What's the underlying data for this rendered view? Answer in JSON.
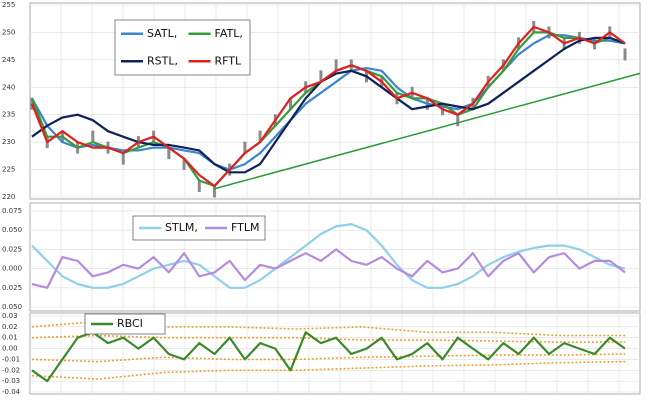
{
  "chart_data": [
    {
      "type": "line",
      "ylim": [
        220,
        255
      ],
      "yticks": [
        220,
        225,
        230,
        235,
        240,
        245,
        250,
        255
      ],
      "xlim": [
        0,
        39
      ],
      "grid": true,
      "price": {
        "color": "#8a8a8a",
        "values": [
          237,
          230,
          231,
          229,
          231,
          229,
          227,
          230,
          231,
          228,
          226,
          222,
          221,
          225,
          229,
          231,
          234,
          237,
          240,
          242,
          244,
          244,
          242,
          241,
          238,
          239,
          237,
          236,
          234,
          237,
          241,
          244,
          248,
          251,
          250,
          248,
          249,
          248,
          250,
          246
        ]
      },
      "series": [
        {
          "name": "SATL,",
          "color": "#3a86d0",
          "values": [
            238,
            233,
            230,
            229,
            229.5,
            229,
            228.5,
            228.5,
            229,
            229,
            228.5,
            228,
            226,
            225,
            226,
            228,
            231,
            234,
            237,
            239,
            241,
            243,
            243.5,
            243,
            240,
            238,
            237,
            236.5,
            236,
            237,
            240,
            243,
            246,
            248,
            249.5,
            249.5,
            249,
            248.5,
            248.5,
            248
          ]
        },
        {
          "name": "FATL,",
          "color": "#3a9a3a",
          "values": [
            238,
            231,
            231,
            229,
            230,
            229,
            228,
            229,
            230,
            229,
            227,
            223,
            222,
            225,
            228,
            230,
            233,
            236,
            239,
            241,
            243,
            244,
            243,
            242,
            239,
            238,
            238,
            237,
            235,
            236,
            240,
            243,
            247,
            250,
            250,
            249,
            249,
            248,
            249,
            248
          ]
        },
        {
          "name": "RSTL,",
          "color": "#10205a",
          "values": [
            231,
            233,
            234.5,
            235,
            234,
            232,
            231,
            230,
            229.5,
            229.5,
            229,
            228.5,
            226,
            224.5,
            224.5,
            226,
            230,
            234,
            238,
            241,
            242.5,
            243,
            242,
            240,
            238,
            236,
            236.5,
            237,
            236.5,
            236,
            237,
            239,
            241,
            243,
            245,
            247,
            248.5,
            249,
            249,
            248
          ]
        },
        {
          "name": "RFTL",
          "color": "#e02020",
          "values": [
            237,
            230,
            232,
            230,
            229,
            229,
            228,
            230,
            231,
            229,
            227,
            224,
            222,
            225,
            228,
            230,
            234,
            238,
            240,
            241,
            243,
            244,
            243,
            241,
            238,
            239,
            238,
            236,
            235,
            237,
            241,
            244,
            248,
            251,
            250,
            248,
            249,
            248,
            250,
            248
          ]
        }
      ],
      "trendline": {
        "color": "#2a9a3a",
        "x": [
          12,
          39
        ],
        "values": [
          221.5,
          241.8
        ]
      }
    },
    {
      "type": "line",
      "ylim": [
        -0.05,
        0.075
      ],
      "yticks": [
        0.075,
        {
          "value": 0.05,
          "label": "0.050"
        },
        0.025,
        {
          "value": 0,
          "label": "0.000"
        },
        {
          "value": -0.025,
          "label": "0.025"
        },
        {
          "value": -0.05,
          "label": "0.050"
        }
      ],
      "grid": true,
      "series": [
        {
          "name": "STLM,",
          "color": "#8fd0ea",
          "values": [
            0.03,
            0.01,
            -0.01,
            -0.02,
            -0.025,
            -0.025,
            -0.02,
            -0.01,
            0,
            0.005,
            0.01,
            0.005,
            -0.01,
            -0.025,
            -0.025,
            -0.015,
            0,
            0.015,
            0.03,
            0.045,
            0.055,
            0.058,
            0.05,
            0.03,
            0.005,
            -0.015,
            -0.025,
            -0.025,
            -0.02,
            -0.01,
            0.005,
            0.015,
            0.022,
            0.027,
            0.03,
            0.03,
            0.025,
            0.015,
            0.005,
            0
          ]
        },
        {
          "name": "FTLM",
          "color": "#b58be0",
          "values": [
            -0.02,
            -0.025,
            0.015,
            0.01,
            -0.01,
            -0.005,
            0.005,
            0,
            0.015,
            -0.005,
            0.02,
            -0.01,
            -0.005,
            0.01,
            -0.015,
            0.005,
            0,
            0.01,
            0.02,
            0.01,
            0.025,
            0.01,
            0.005,
            0.015,
            0,
            -0.01,
            0.01,
            -0.005,
            0,
            0.02,
            -0.01,
            0.01,
            0.02,
            -0.005,
            0.015,
            0.02,
            0,
            0.01,
            0.01,
            -0.005
          ]
        }
      ]
    },
    {
      "type": "line",
      "ylim": [
        -0.04,
        0.03
      ],
      "yticks": [
        0.03,
        0.02,
        0.01,
        {
          "value": 0,
          "label": "0.00"
        },
        -0.01,
        -0.02,
        -0.03,
        -0.04
      ],
      "grid": true,
      "bands": {
        "color": "#f0a030",
        "values": [
          [
            0.02,
            0.025,
            0.02,
            0.02,
            0.018,
            0.02,
            0.015,
            0.015,
            0.012,
            0.012
          ],
          [
            0.01,
            0.012,
            0.01,
            0.01,
            0.01,
            0.008,
            0.008,
            0.007,
            0.006,
            0.006
          ],
          [
            -0.01,
            -0.012,
            -0.008,
            -0.01,
            -0.01,
            -0.008,
            -0.007,
            -0.006,
            -0.006,
            -0.005
          ],
          [
            -0.025,
            -0.028,
            -0.022,
            -0.02,
            -0.02,
            -0.018,
            -0.016,
            -0.015,
            -0.013,
            -0.012
          ]
        ]
      },
      "series": [
        {
          "name": "RBCI",
          "color": "#3a8a2a",
          "values": [
            -0.02,
            -0.03,
            -0.01,
            0.01,
            0.015,
            0.005,
            0.01,
            0,
            0.01,
            -0.005,
            -0.01,
            0.005,
            -0.005,
            0.01,
            -0.01,
            0.005,
            0,
            -0.02,
            0.015,
            0.005,
            0.01,
            -0.005,
            0,
            0.01,
            -0.01,
            -0.005,
            0.005,
            -0.01,
            0.01,
            0,
            -0.01,
            0.005,
            -0.005,
            0.01,
            -0.005,
            0.005,
            0,
            -0.005,
            0.01,
            0
          ]
        }
      ]
    }
  ]
}
